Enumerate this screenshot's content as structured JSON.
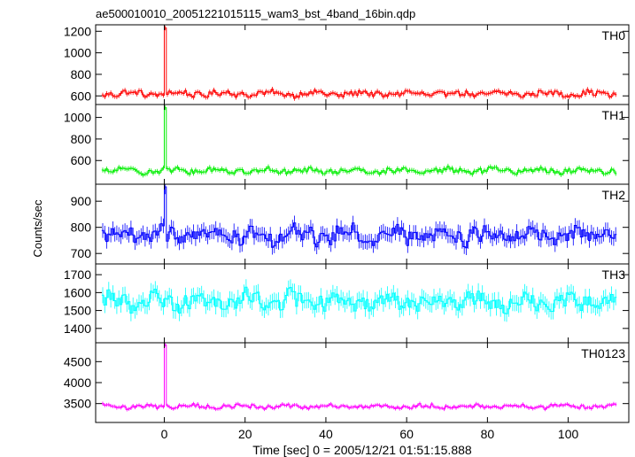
{
  "figure": {
    "title": "ae500010010_20051221015115_wam3_bst_4band_16bin.qdp",
    "ylabel": "Counts/sec",
    "xlabel": "Time [sec] 0 = 2005/12/21 01:51:15.888"
  },
  "chart_data": [
    {
      "type": "line",
      "panel": "TH0",
      "title": "ae500010010_20051221015115_wam3_bst_4band_16bin.qdp",
      "series": [
        {
          "name": "TH0",
          "color": "#ff0000"
        }
      ],
      "xlim": [
        -17,
        115
      ],
      "ylim": [
        520,
        1260
      ],
      "yticks": [
        600,
        800,
        1000,
        1200
      ],
      "baseline": 620,
      "noise": 30,
      "err": 22,
      "burst": {
        "t": [
          0.0,
          0.4,
          0.8
        ],
        "values": [
          1230,
          1210,
          700
        ]
      }
    },
    {
      "type": "line",
      "panel": "TH1",
      "series": [
        {
          "name": "TH1",
          "color": "#00ee00"
        }
      ],
      "xlim": [
        -17,
        115
      ],
      "ylim": [
        380,
        1120
      ],
      "yticks": [
        600,
        800,
        1000
      ],
      "baseline": 505,
      "noise": 30,
      "err": 22,
      "burst": {
        "t": [
          0.0,
          0.4,
          0.8
        ],
        "values": [
          1090,
          1080,
          650
        ]
      }
    },
    {
      "type": "line",
      "panel": "TH2",
      "series": [
        {
          "name": "TH2",
          "color": "#0000ff"
        }
      ],
      "xlim": [
        -17,
        115
      ],
      "ylim": [
        660,
        965
      ],
      "yticks": [
        700,
        800,
        900
      ],
      "baseline": 770,
      "noise": 35,
      "err": 28,
      "burst": {
        "t": [
          0.0,
          0.4
        ],
        "values": [
          955,
          945
        ]
      }
    },
    {
      "type": "line",
      "panel": "TH3",
      "series": [
        {
          "name": "TH3",
          "color": "#00ffff"
        }
      ],
      "xlim": [
        -17,
        115
      ],
      "ylim": [
        1320,
        1760
      ],
      "yticks": [
        1400,
        1500,
        1600,
        1700
      ],
      "baseline": 1555,
      "noise": 55,
      "err": 45,
      "burst": null
    },
    {
      "type": "line",
      "panel": "TH0123",
      "series": [
        {
          "name": "TH0123",
          "color": "#ff00ff"
        }
      ],
      "xlim": [
        -17,
        115
      ],
      "ylim": [
        3050,
        4950
      ],
      "yticks": [
        3500,
        4000,
        4500
      ],
      "baseline": 3430,
      "noise": 55,
      "err": 45,
      "burst": {
        "t": [
          0.0,
          0.4,
          0.8
        ],
        "values": [
          4900,
          4850,
          3750
        ]
      }
    }
  ],
  "x_axis": {
    "ticks": [
      "0",
      "20",
      "40",
      "60",
      "80",
      "100"
    ],
    "tick_values": [
      0,
      20,
      40,
      60,
      80,
      100
    ],
    "xmin": -17,
    "xmax": 115,
    "bin": 0.5
  }
}
